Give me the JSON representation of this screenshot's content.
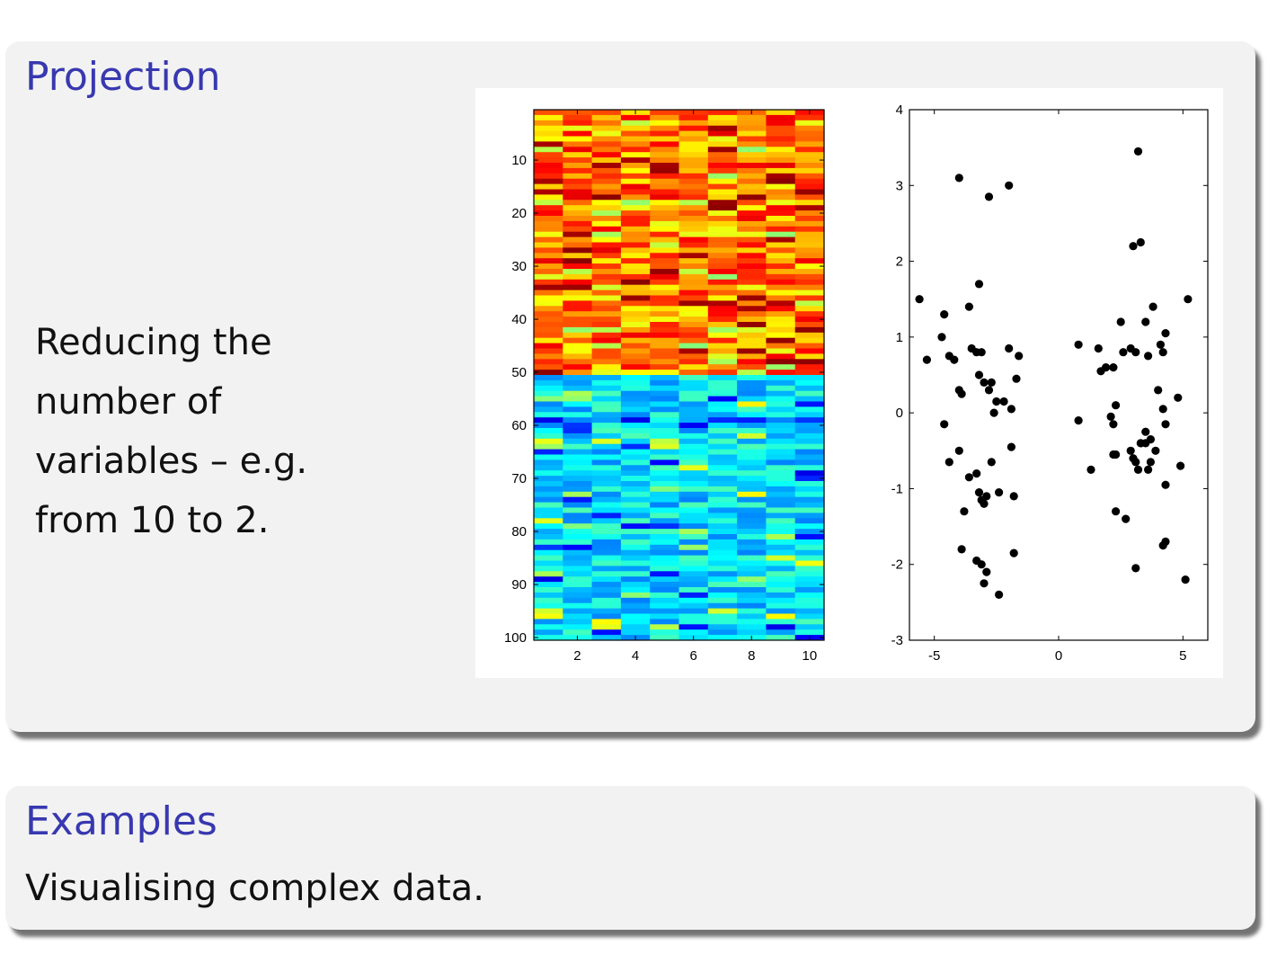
{
  "block1": {
    "title": "Projection",
    "text_lines": [
      "Reducing the",
      "number of",
      "variables – e.g.",
      "from 10 to 2."
    ]
  },
  "block2": {
    "title": "Examples",
    "text": "Visualising complex data."
  },
  "chart_data": [
    {
      "type": "heatmap",
      "rows": 100,
      "cols": 10,
      "colormap": "jet",
      "x_ticks": [
        2,
        4,
        6,
        8,
        10
      ],
      "y_ticks": [
        10,
        20,
        30,
        40,
        50,
        60,
        70,
        80,
        90,
        100
      ],
      "y_reversed": true,
      "groups": [
        {
          "rows": [
            1,
            50
          ],
          "value_range": [
            0.6,
            0.9
          ]
        },
        {
          "rows": [
            51,
            100
          ],
          "value_range": [
            0.25,
            0.45
          ]
        }
      ]
    },
    {
      "type": "scatter",
      "xlim": [
        -6,
        6
      ],
      "ylim": [
        -3,
        4
      ],
      "x_ticks": [
        -5,
        0,
        5
      ],
      "y_ticks": [
        -3,
        -2,
        -1,
        0,
        1,
        2,
        3,
        4
      ],
      "x_tick_labels": [
        "-5",
        "0",
        "5"
      ],
      "y_tick_labels": [
        "-3",
        "-2",
        "-1",
        "0",
        "1",
        "2",
        "3",
        "4"
      ],
      "marker_color": "#000000",
      "points": [
        [
          -5.6,
          1.5
        ],
        [
          -5.3,
          0.7
        ],
        [
          -4.6,
          1.3
        ],
        [
          -4.7,
          1.0
        ],
        [
          -4.4,
          0.75
        ],
        [
          -4.2,
          0.7
        ],
        [
          -4.0,
          0.3
        ],
        [
          -3.9,
          0.25
        ],
        [
          -4.6,
          -0.15
        ],
        [
          -4.0,
          -0.5
        ],
        [
          -4.4,
          -0.65
        ],
        [
          -3.6,
          -0.85
        ],
        [
          -3.3,
          -0.8
        ],
        [
          -3.2,
          -1.05
        ],
        [
          -3.1,
          -1.15
        ],
        [
          -3.0,
          -1.2
        ],
        [
          -2.9,
          -1.1
        ],
        [
          -3.8,
          -1.3
        ],
        [
          -3.9,
          -1.8
        ],
        [
          -3.3,
          -1.95
        ],
        [
          -3.1,
          -2.0
        ],
        [
          -3.0,
          -2.25
        ],
        [
          -2.9,
          -2.1
        ],
        [
          -2.4,
          -2.4
        ],
        [
          -3.6,
          1.4
        ],
        [
          -3.5,
          0.85
        ],
        [
          -3.3,
          0.8
        ],
        [
          -3.1,
          0.8
        ],
        [
          -3.2,
          0.5
        ],
        [
          -3.0,
          0.4
        ],
        [
          -2.8,
          0.3
        ],
        [
          -2.7,
          0.4
        ],
        [
          -2.6,
          0.0
        ],
        [
          -2.5,
          0.15
        ],
        [
          -2.2,
          0.15
        ],
        [
          -1.9,
          0.05
        ],
        [
          -1.7,
          0.45
        ],
        [
          -1.6,
          0.75
        ],
        [
          -2.0,
          0.85
        ],
        [
          -1.9,
          -0.45
        ],
        [
          -2.7,
          -0.65
        ],
        [
          -2.4,
          -1.05
        ],
        [
          -1.8,
          -1.1
        ],
        [
          -1.8,
          -1.85
        ],
        [
          -3.2,
          1.7
        ],
        [
          -4.0,
          3.1
        ],
        [
          -2.8,
          2.85
        ],
        [
          -2.0,
          3.0
        ],
        [
          0.8,
          0.9
        ],
        [
          1.7,
          0.55
        ],
        [
          1.6,
          0.85
        ],
        [
          1.9,
          0.6
        ],
        [
          2.2,
          0.6
        ],
        [
          2.5,
          1.2
        ],
        [
          2.6,
          0.8
        ],
        [
          2.9,
          0.85
        ],
        [
          3.1,
          0.8
        ],
        [
          3.6,
          0.75
        ],
        [
          3.5,
          1.2
        ],
        [
          3.8,
          1.4
        ],
        [
          4.1,
          0.9
        ],
        [
          4.3,
          1.05
        ],
        [
          4.2,
          0.8
        ],
        [
          5.2,
          1.5
        ],
        [
          0.8,
          -0.1
        ],
        [
          1.3,
          -0.75
        ],
        [
          2.1,
          -0.05
        ],
        [
          2.2,
          -0.15
        ],
        [
          2.3,
          0.1
        ],
        [
          2.2,
          -0.55
        ],
        [
          2.3,
          -0.55
        ],
        [
          2.9,
          -0.5
        ],
        [
          3.0,
          -0.6
        ],
        [
          3.1,
          -0.65
        ],
        [
          3.2,
          -0.75
        ],
        [
          3.3,
          -0.4
        ],
        [
          3.5,
          -0.25
        ],
        [
          3.5,
          -0.4
        ],
        [
          3.7,
          -0.35
        ],
        [
          3.7,
          -0.65
        ],
        [
          3.6,
          -0.75
        ],
        [
          3.9,
          -0.5
        ],
        [
          4.3,
          -0.15
        ],
        [
          4.3,
          -0.95
        ],
        [
          4.0,
          0.3
        ],
        [
          4.2,
          0.05
        ],
        [
          4.8,
          0.2
        ],
        [
          4.9,
          -0.7
        ],
        [
          2.3,
          -1.3
        ],
        [
          2.7,
          -1.4
        ],
        [
          3.1,
          -2.05
        ],
        [
          4.2,
          -1.75
        ],
        [
          4.3,
          -1.7
        ],
        [
          5.1,
          -2.2
        ],
        [
          3.0,
          2.2
        ],
        [
          3.3,
          2.25
        ],
        [
          3.2,
          3.45
        ]
      ]
    }
  ]
}
